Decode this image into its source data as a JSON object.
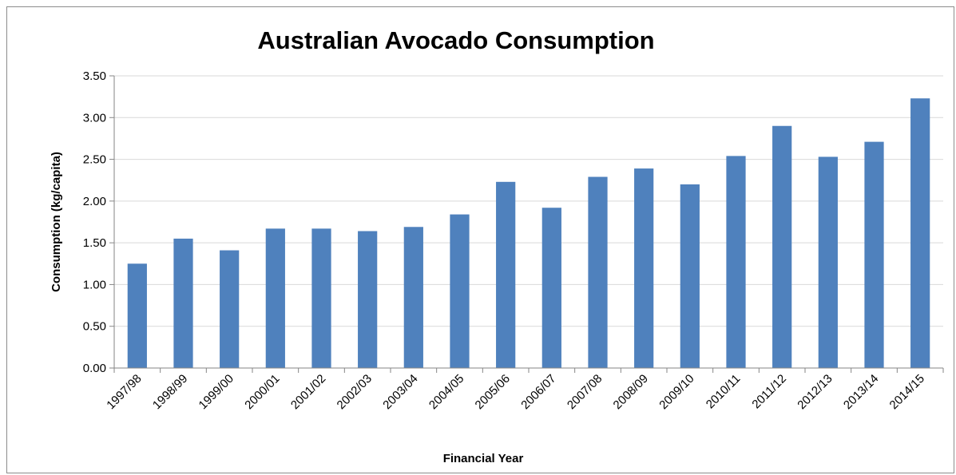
{
  "chart_data": {
    "type": "bar",
    "title": "Australian Avocado Consumption",
    "xlabel": "Financial Year",
    "ylabel": "Consumption (kg/capita)",
    "ylim": [
      0,
      3.5
    ],
    "yticks": [
      "0.00",
      "0.50",
      "1.00",
      "1.50",
      "2.00",
      "2.50",
      "3.00",
      "3.50"
    ],
    "grid": true,
    "legend": "none",
    "bar_color": "#4F81BD",
    "categories": [
      "1997/98",
      "1998/99",
      "1999/00",
      "2000/01",
      "2001/02",
      "2002/03",
      "2003/04",
      "2004/05",
      "2005/06",
      "2006/07",
      "2007/08",
      "2008/09",
      "2009/10",
      "2010/11",
      "2011/12",
      "2012/13",
      "2013/14",
      "2014/15"
    ],
    "values": [
      1.25,
      1.55,
      1.41,
      1.67,
      1.67,
      1.64,
      1.69,
      1.84,
      2.23,
      1.92,
      2.29,
      2.39,
      2.2,
      2.54,
      2.9,
      2.53,
      2.71,
      3.23
    ]
  }
}
